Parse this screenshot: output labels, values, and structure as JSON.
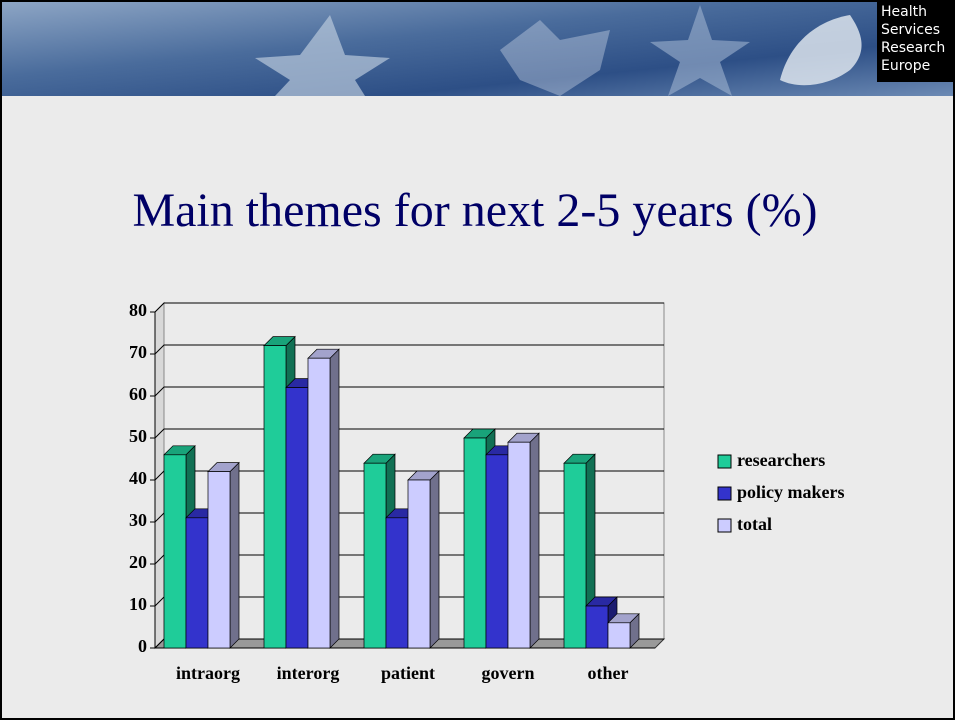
{
  "header": {
    "logo": [
      "Health",
      "Services",
      "Research",
      "Europe"
    ]
  },
  "chart_data": {
    "type": "bar3d",
    "title": "Main themes for  next 2-5 years (%)",
    "categories": [
      "intraorg",
      "interorg",
      "patient",
      "govern",
      "other"
    ],
    "series": [
      {
        "name": "researchers",
        "color": "#1fcc99",
        "values": [
          46,
          72,
          44,
          50,
          44
        ]
      },
      {
        "name": "policy makers",
        "color": "#3333cc",
        "values": [
          31,
          62,
          31,
          46,
          10
        ]
      },
      {
        "name": "total",
        "color": "#ccccff",
        "values": [
          42,
          69,
          40,
          49,
          6
        ]
      }
    ],
    "ylim": [
      0,
      80
    ],
    "yticks": [
      0,
      10,
      20,
      30,
      40,
      50,
      60,
      70,
      80
    ],
    "grid": true,
    "legend": "right"
  }
}
